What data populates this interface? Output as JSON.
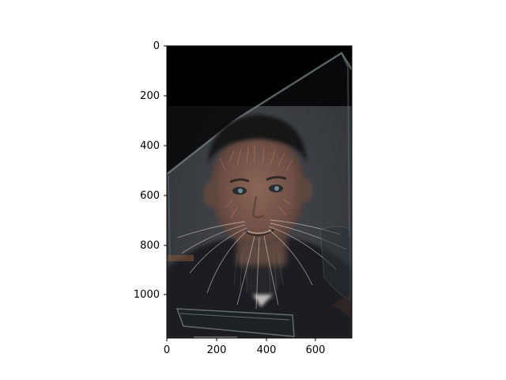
{
  "figure": {
    "background": "#ffffff",
    "image": {
      "description_colors": {
        "backdrop": "#3a3d42",
        "top_band": "#000000",
        "skin": "#7a5a4e",
        "hair": "#1a1a1c",
        "shirt": "#1d1e22"
      },
      "extent": {
        "x": [
          0,
          745
        ],
        "y": [
          1170,
          0
        ]
      }
    },
    "x_axis": {
      "ticks": [
        0,
        200,
        400,
        600
      ],
      "labels": [
        "0",
        "200",
        "400",
        "600"
      ]
    },
    "y_axis": {
      "ticks": [
        0,
        200,
        400,
        600,
        800,
        1000
      ],
      "labels": [
        "0",
        "200",
        "400",
        "600",
        "800",
        "1000"
      ]
    }
  }
}
